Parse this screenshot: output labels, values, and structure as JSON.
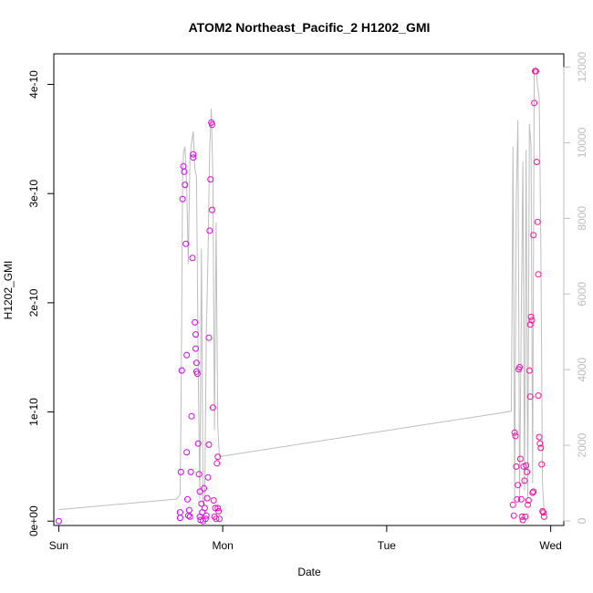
{
  "chart_data": {
    "type": "scatter",
    "title": "ATOM2 Northeast_Pacific_2 H1202_GMI",
    "xlabel": "Date",
    "ylabel": "H1202_GMI",
    "x_ticks": [
      "Sun",
      "Mon",
      "Tue",
      "Wed"
    ],
    "y_ticks": [
      "0e+00",
      "1e-10",
      "2e-10",
      "3e-10",
      "4e-10"
    ],
    "y_right_ticks": [
      "0",
      "2000",
      "4000",
      "6000",
      "8000",
      "10000",
      "12000"
    ],
    "xlim_days": [
      -0.03,
      3.08
    ],
    "ylim": [
      -4e-12,
      4.28e-10
    ],
    "ylim_right": [
      -120,
      12350
    ],
    "grid": false,
    "colors": {
      "points_start": "#cc00ff",
      "points_end": "#ff1493",
      "altitude_line": "#bdbdbd"
    },
    "series": [
      {
        "values": [
          [
            0.0,
            0.0
          ],
          [
            0.74,
            3e-12
          ],
          [
            0.74,
            8e-12
          ],
          [
            0.745,
            4.5e-11
          ],
          [
            0.75,
            1.38e-10
          ],
          [
            0.755,
            2.95e-10
          ],
          [
            0.76,
            3.25e-10
          ],
          [
            0.765,
            3.2e-10
          ],
          [
            0.77,
            3.08e-10
          ],
          [
            0.775,
            2.54e-10
          ],
          [
            0.78,
            1.52e-10
          ],
          [
            0.78,
            6.3e-11
          ],
          [
            0.785,
            2e-11
          ],
          [
            0.79,
            5e-12
          ],
          [
            0.795,
            1e-11
          ],
          [
            0.8,
            4e-12
          ],
          [
            0.805,
            4.5e-11
          ],
          [
            0.81,
            9.6e-11
          ],
          [
            0.815,
            2.41e-10
          ],
          [
            0.82,
            3.33e-10
          ],
          [
            0.82,
            3.36e-10
          ],
          [
            0.83,
            1.82e-10
          ],
          [
            0.835,
            1.71e-10
          ],
          [
            0.835,
            1.58e-10
          ],
          [
            0.84,
            1.45e-10
          ],
          [
            0.84,
            1.37e-10
          ],
          [
            0.845,
            1.35e-10
          ],
          [
            0.85,
            7.1e-11
          ],
          [
            0.855,
            4.3e-11
          ],
          [
            0.86,
            2.7e-11
          ],
          [
            0.86,
            4e-12
          ],
          [
            0.865,
            1e-12
          ],
          [
            0.87,
            1.6e-11
          ],
          [
            0.875,
            8e-12
          ],
          [
            0.88,
            0.0
          ],
          [
            0.885,
            3e-11
          ],
          [
            0.89,
            1.2e-11
          ],
          [
            0.895,
            2e-12
          ],
          [
            0.9,
            5e-12
          ],
          [
            0.905,
            2.1e-11
          ],
          [
            0.91,
            4e-11
          ],
          [
            0.915,
            7e-11
          ],
          [
            0.915,
            1.68e-10
          ],
          [
            0.92,
            2.66e-10
          ],
          [
            0.925,
            3.13e-10
          ],
          [
            0.93,
            3.65e-10
          ],
          [
            0.935,
            3.63e-10
          ],
          [
            0.935,
            2.85e-10
          ],
          [
            0.94,
            1.04e-10
          ],
          [
            0.945,
            1.9e-11
          ],
          [
            0.95,
            4e-12
          ],
          [
            0.955,
            1.2e-11
          ],
          [
            0.96,
            2e-12
          ],
          [
            0.965,
            5.3e-11
          ],
          [
            0.97,
            5.9e-11
          ],
          [
            0.97,
            1.2e-11
          ],
          [
            0.975,
            9e-12
          ],
          [
            0.98,
            2e-12
          ],
          [
            2.77,
            1.5e-11
          ],
          [
            2.775,
            5e-12
          ],
          [
            2.78,
            8.1e-11
          ],
          [
            2.785,
            7.8e-11
          ],
          [
            2.79,
            5e-11
          ],
          [
            2.795,
            2e-11
          ],
          [
            2.8,
            3.3e-11
          ],
          [
            2.805,
            1.39e-10
          ],
          [
            2.81,
            1.41e-10
          ],
          [
            2.815,
            5.7e-11
          ],
          [
            2.82,
            2e-11
          ],
          [
            2.825,
            4e-12
          ],
          [
            2.83,
            1e-12
          ],
          [
            2.835,
            5e-11
          ],
          [
            2.84,
            3.7e-11
          ],
          [
            2.845,
            4e-12
          ],
          [
            2.85,
            5.1e-11
          ],
          [
            2.855,
            4.5e-11
          ],
          [
            2.86,
            1.5e-11
          ],
          [
            2.865,
            1.9e-11
          ],
          [
            2.87,
            1.38e-10
          ],
          [
            2.875,
            1.14e-10
          ],
          [
            2.875,
            1.8e-10
          ],
          [
            2.88,
            1.87e-10
          ],
          [
            2.885,
            1.84e-10
          ],
          [
            2.89,
            2.6e-11
          ],
          [
            2.895,
            2.7e-11
          ],
          [
            2.895,
            2.62e-10
          ],
          [
            2.9,
            3.83e-10
          ],
          [
            2.905,
            4.12e-10
          ],
          [
            2.91,
            4.12e-10
          ],
          [
            2.915,
            3.29e-10
          ],
          [
            2.92,
            2.74e-10
          ],
          [
            2.925,
            2.26e-10
          ],
          [
            2.925,
            1.15e-10
          ],
          [
            2.93,
            7.7e-11
          ],
          [
            2.935,
            7.1e-11
          ],
          [
            2.94,
            6.7e-11
          ],
          [
            2.945,
            5.2e-11
          ],
          [
            2.95,
            9e-12
          ],
          [
            2.955,
            8e-12
          ],
          [
            2.96,
            4e-12
          ]
        ]
      }
    ],
    "line_series": [
      {
        "axis": "right",
        "values": [
          [
            0.0,
            300
          ],
          [
            0.72,
            580
          ],
          [
            0.74,
            700
          ],
          [
            0.745,
            2600
          ],
          [
            0.75,
            5500
          ],
          [
            0.755,
            9000
          ],
          [
            0.76,
            9700
          ],
          [
            0.77,
            9900
          ],
          [
            0.78,
            8900
          ],
          [
            0.79,
            6800
          ],
          [
            0.8,
            9600
          ],
          [
            0.81,
            10000
          ],
          [
            0.82,
            10300
          ],
          [
            0.83,
            9300
          ],
          [
            0.84,
            9100
          ],
          [
            0.85,
            4200
          ],
          [
            0.86,
            600
          ],
          [
            0.87,
            7200
          ],
          [
            0.88,
            400
          ],
          [
            0.89,
            600
          ],
          [
            0.9,
            5000
          ],
          [
            0.91,
            7000
          ],
          [
            0.92,
            9800
          ],
          [
            0.93,
            10900
          ],
          [
            0.94,
            9000
          ],
          [
            0.95,
            2400
          ],
          [
            0.96,
            7900
          ],
          [
            0.97,
            2500
          ],
          [
            0.98,
            1700
          ],
          [
            2.76,
            2900
          ],
          [
            2.77,
            9900
          ],
          [
            2.78,
            600
          ],
          [
            2.79,
            8500
          ],
          [
            2.8,
            10600
          ],
          [
            2.81,
            500
          ],
          [
            2.82,
            5200
          ],
          [
            2.83,
            9500
          ],
          [
            2.84,
            800
          ],
          [
            2.85,
            9800
          ],
          [
            2.86,
            600
          ],
          [
            2.87,
            10500
          ],
          [
            2.88,
            9900
          ],
          [
            2.89,
            1000
          ],
          [
            2.9,
            11900
          ],
          [
            2.91,
            12000
          ],
          [
            2.92,
            11500
          ],
          [
            2.93,
            11200
          ],
          [
            2.94,
            7400
          ],
          [
            2.95,
            1000
          ],
          [
            2.96,
            200
          ]
        ]
      }
    ]
  }
}
